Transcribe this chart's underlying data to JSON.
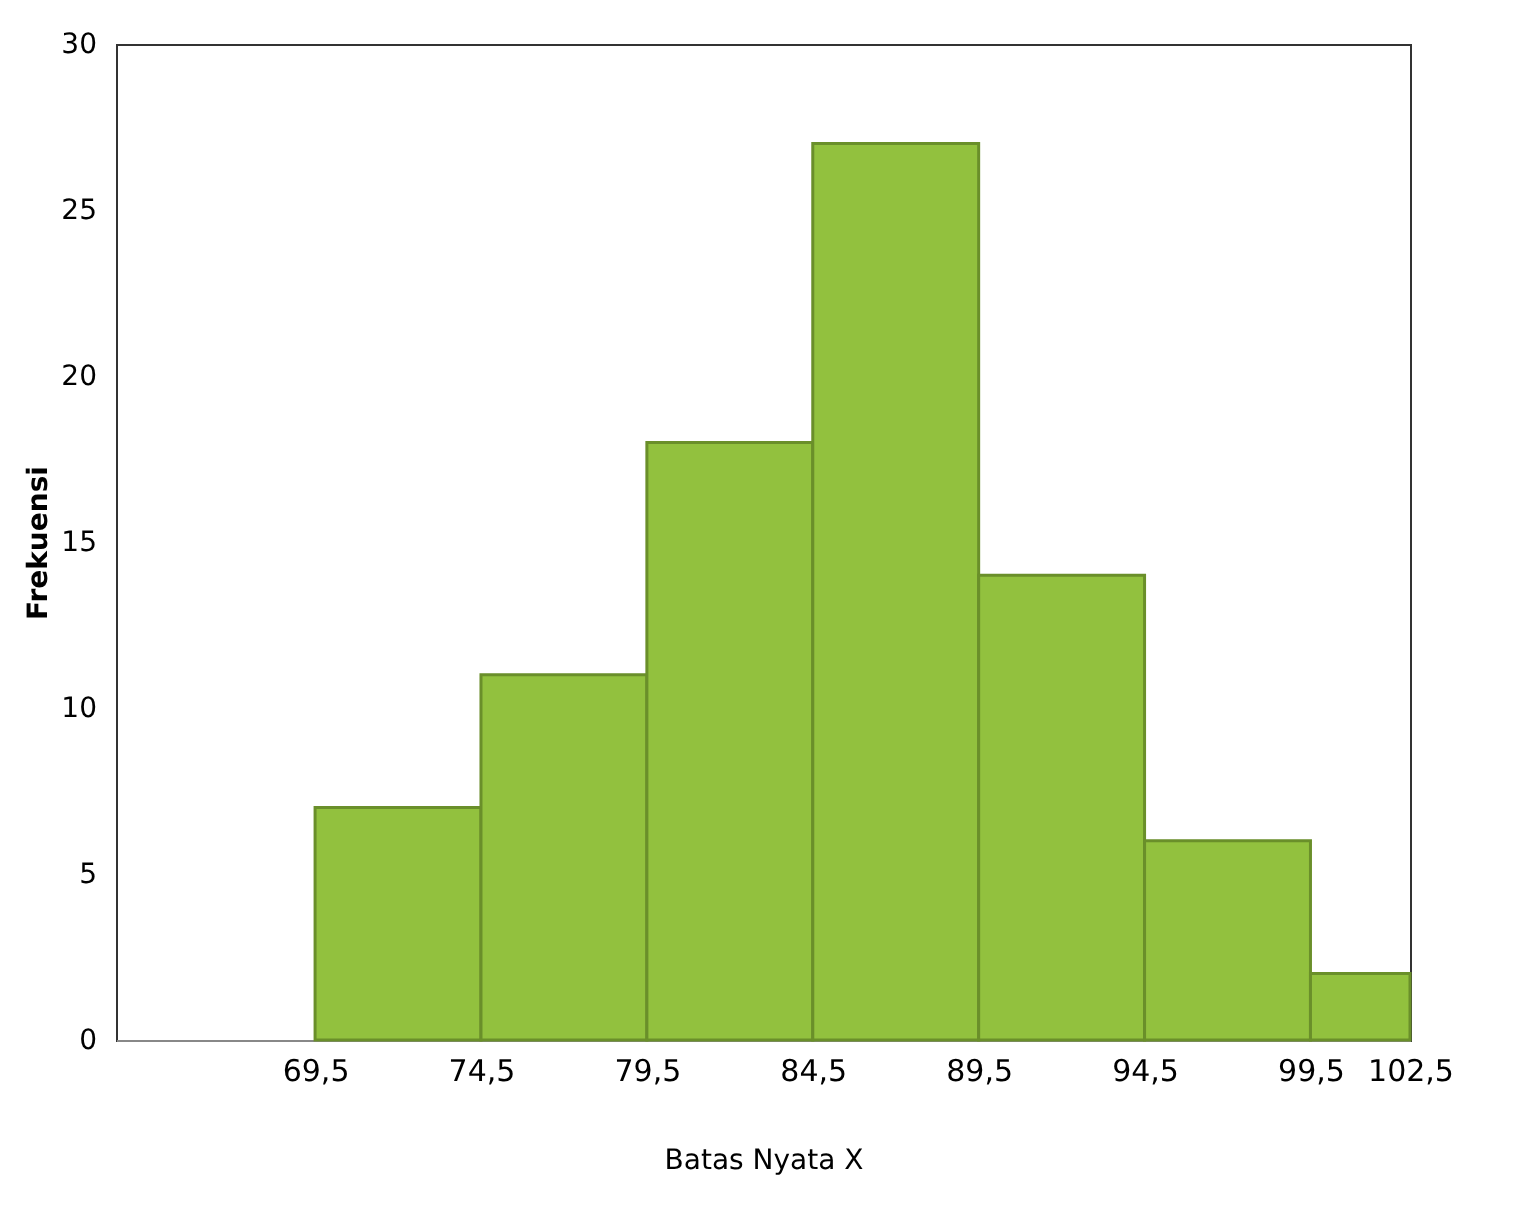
{
  "chart_data": {
    "type": "histogram",
    "xlabel": "Batas Nyata X",
    "ylabel": "Frekuensi",
    "bins": [
      69.5,
      74.5,
      79.5,
      84.5,
      89.5,
      94.5,
      99.5,
      102.5
    ],
    "values": [
      7,
      11,
      18,
      27,
      14,
      6,
      2
    ],
    "color": "#92c13e",
    "xlim": [
      63.5,
      102.5
    ],
    "xticks": [
      {
        "value": 69.5,
        "label": "69,5"
      },
      {
        "value": 74.5,
        "label": "74,5"
      },
      {
        "value": 79.5,
        "label": "79,5"
      },
      {
        "value": 84.5,
        "label": "84,5"
      },
      {
        "value": 89.5,
        "label": "89,5"
      },
      {
        "value": 94.5,
        "label": "94,5"
      },
      {
        "value": 99.5,
        "label": "99,5"
      },
      {
        "value": 102.5,
        "label": "102,5"
      }
    ],
    "ylim": [
      0,
      30
    ],
    "yticks": [
      0,
      5,
      10,
      15,
      20,
      25,
      30
    ],
    "grid": false
  }
}
